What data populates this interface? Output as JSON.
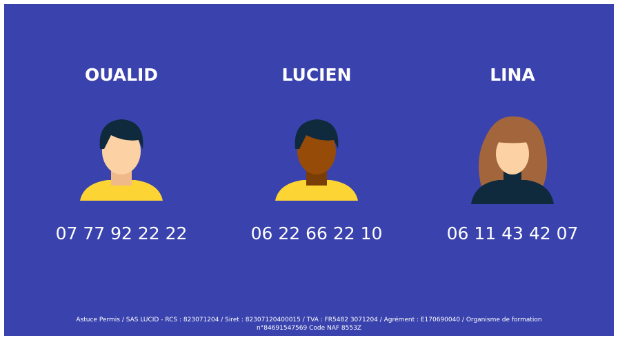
{
  "contacts": [
    {
      "name": "OUALID",
      "phone": "07 77 92 22 22"
    },
    {
      "name": "LUCIEN",
      "phone": "06 22 66 22 10"
    },
    {
      "name": "LINA",
      "phone": "06 11 43 42 07"
    }
  ],
  "footer": [
    "Astuce Permis / SAS LUCID - RCS : 823071204 / Siret : 82307120400015 / TVA : FR5482 3071204 / Agrément : E170690040 / Organisme de formation",
    "n°84691547569  Code NAF 8553Z"
  ]
}
